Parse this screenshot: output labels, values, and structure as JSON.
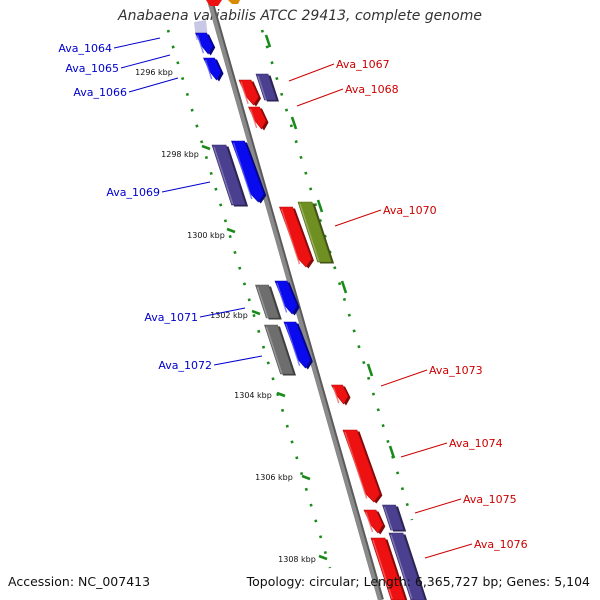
{
  "title": "Anabaena variabilis ATCC 29413, complete genome",
  "footer": {
    "accession": "Accession: NC_007413",
    "summary": "Topology: circular; Length: 6,365,727 bp; Genes: 5,104"
  },
  "colors": {
    "backbone": "#8a8a8a",
    "tick": "#1a8a1a",
    "label_left": "#0000cc",
    "label_right": "#cc0000",
    "gene_blue": "#0a0aee",
    "gene_navy": "#4b3f8f",
    "gene_red": "#ee1111",
    "gene_olive": "#6f8f22",
    "gene_gray": "#6e6e6e",
    "gene_orange": "#d98a00",
    "gene_lavender": "#c9c7e6"
  },
  "scale_labels": [
    "1296 kbp",
    "1298 kbp",
    "1300 kbp",
    "1302 kbp",
    "1304 kbp",
    "1306 kbp",
    "1308 kbp"
  ],
  "left_labels": [
    "Ava_1064",
    "Ava_1065",
    "Ava_1066",
    "Ava_1069",
    "Ava_1071",
    "Ava_1072"
  ],
  "right_labels": [
    "Ava_1067",
    "Ava_1068",
    "Ava_1070",
    "Ava_1073",
    "Ava_1074",
    "Ava_1075",
    "Ava_1076"
  ]
}
